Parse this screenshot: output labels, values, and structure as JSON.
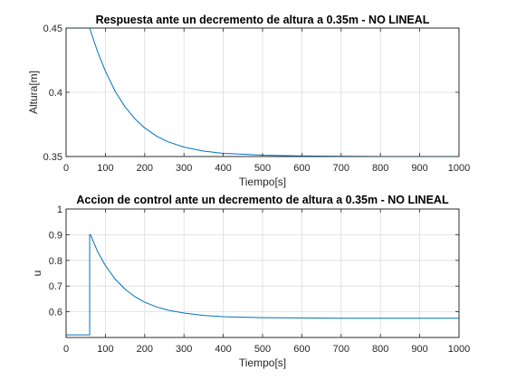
{
  "chart_data": [
    {
      "type": "line",
      "title": "Respuesta ante un decremento de altura a 0.35m - NO LINEAL",
      "xlabel": "Tiempo[s]",
      "ylabel": "Altura[m]",
      "xlim": [
        0,
        1000
      ],
      "ylim": [
        0.35,
        0.45
      ],
      "xticks": [
        0,
        100,
        200,
        300,
        400,
        500,
        600,
        700,
        800,
        900,
        1000
      ],
      "yticks": [
        0.35,
        0.4,
        0.45
      ],
      "ytick_labels": [
        "0.35",
        "0.4",
        "0.45"
      ],
      "grid": true,
      "line_color": "#0072bd",
      "series": [
        {
          "x": [
            0,
            60,
            80,
            100,
            125,
            150,
            175,
            200,
            230,
            260,
            300,
            350,
            400,
            500,
            600,
            700,
            800,
            900,
            1000
          ],
          "values": [
            0.45,
            0.45,
            0.4317,
            0.4164,
            0.4007,
            0.3887,
            0.3794,
            0.3723,
            0.3659,
            0.3614,
            0.3573,
            0.3542,
            0.3525,
            0.3511,
            0.3504,
            0.3502,
            0.35,
            0.35,
            0.35
          ]
        }
      ]
    },
    {
      "type": "line",
      "title": "Accion de control ante un decremento de altura a 0.35m - NO LINEAL",
      "xlabel": "Tiempo[s]",
      "ylabel": "u",
      "xlim": [
        0,
        1000
      ],
      "ylim": [
        0.5,
        1.0
      ],
      "xticks": [
        0,
        100,
        200,
        300,
        400,
        500,
        600,
        700,
        800,
        900,
        1000
      ],
      "yticks": [
        0.6,
        0.7,
        0.8,
        0.9,
        1.0
      ],
      "ytick_labels": [
        "0.6",
        "0.7",
        "0.8",
        "0.9",
        "1"
      ],
      "grid": true,
      "line_color": "#0072bd",
      "series": [
        {
          "x": [
            0,
            60,
            60,
            62,
            80,
            100,
            125,
            150,
            175,
            200,
            230,
            260,
            300,
            350,
            400,
            500,
            600,
            700,
            800,
            900,
            1000
          ],
          "values": [
            0.51,
            0.51,
            0.9,
            0.9,
            0.835,
            0.78,
            0.727,
            0.688,
            0.659,
            0.637,
            0.619,
            0.606,
            0.595,
            0.586,
            0.581,
            0.577,
            0.576,
            0.575,
            0.575,
            0.575,
            0.575
          ]
        }
      ]
    }
  ]
}
